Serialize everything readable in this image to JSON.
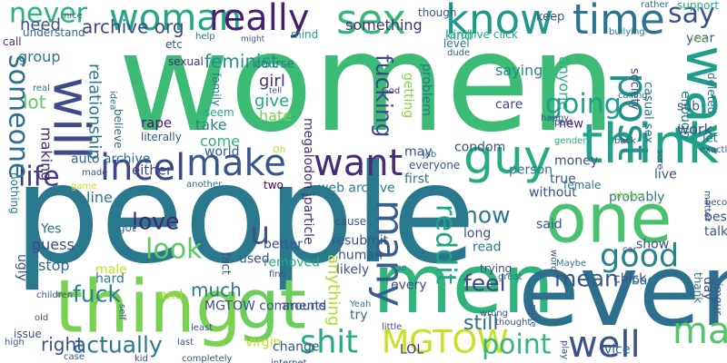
{
  "words": [
    {
      "text": "women",
      "color": "#3cbb75"
    },
    {
      "text": "people",
      "color": "#2a788e"
    },
    {
      "text": "men",
      "color": "#2fb47c"
    },
    {
      "text": "even",
      "color": "#2d708e"
    },
    {
      "text": "thing",
      "color": "#7ad151"
    },
    {
      "text": "gt",
      "color": "#6ccd5a"
    },
    {
      "text": "one",
      "color": "#4ac16d"
    },
    {
      "text": "think",
      "color": "#20a386"
    },
    {
      "text": "will",
      "color": "#3e4a89"
    },
    {
      "text": "woman",
      "color": "#22a785"
    },
    {
      "text": "sex",
      "color": "#35b779"
    },
    {
      "text": "know",
      "color": "#1f9a8a"
    },
    {
      "text": "time",
      "color": "#2c738e"
    },
    {
      "text": "really",
      "color": "#481f70"
    },
    {
      "text": "say",
      "color": "#3b528b"
    },
    {
      "text": "never",
      "color": "#2db27d"
    },
    {
      "text": "way",
      "color": "#1f9e89"
    },
    {
      "text": "make",
      "color": "#39568c"
    },
    {
      "text": "want",
      "color": "#472c7a"
    },
    {
      "text": "incel",
      "color": "#3f4788"
    },
    {
      "text": "guy",
      "color": "#25ac82"
    },
    {
      "text": "post",
      "color": "#21918c"
    },
    {
      "text": "good",
      "color": "#25848e"
    },
    {
      "text": "man",
      "color": "#52c569"
    },
    {
      "text": "well",
      "color": "#3b528b"
    },
    {
      "text": "shit",
      "color": "#25ab82"
    },
    {
      "text": "MGTOW",
      "color": "#c8e020"
    },
    {
      "text": "actually",
      "color": "#2a788e"
    },
    {
      "text": "point",
      "color": "#35b779"
    },
    {
      "text": "many",
      "color": "#355f8d"
    },
    {
      "text": "reddit",
      "color": "#20a486"
    },
    {
      "text": "going",
      "color": "#1f9e89"
    },
    {
      "text": "life",
      "color": "#443a83"
    },
    {
      "text": "someone",
      "color": "#2c728e"
    },
    {
      "text": "u",
      "color": "#3b528b"
    },
    {
      "text": "look",
      "color": "#5ec962"
    },
    {
      "text": "now",
      "color": "#2a788e"
    },
    {
      "text": "feel",
      "color": "#404688"
    },
    {
      "text": "mean",
      "color": "#39568c"
    },
    {
      "text": "fuck",
      "color": "#27808e"
    },
    {
      "text": "love",
      "color": "#482374"
    },
    {
      "text": "much",
      "color": "#29798e"
    },
    {
      "text": "still",
      "color": "#2e6e8e"
    },
    {
      "text": "gender",
      "color": "#25ab82"
    },
    {
      "text": "fucking",
      "color": "#3e4989"
    },
    {
      "text": "anything",
      "color": "#addc30"
    },
    {
      "text": "right",
      "color": "#3b528b"
    },
    {
      "text": "first",
      "color": "#2c728e"
    },
    {
      "text": "lot",
      "color": "#5ec962"
    },
    {
      "text": "feminist",
      "color": "#21918c"
    },
    {
      "text": "archive org",
      "color": "#404688"
    },
    {
      "text": "something",
      "color": "#46327e"
    },
    {
      "text": "need",
      "color": "#3b528b"
    },
    {
      "text": "understand",
      "color": "#31688e"
    },
    {
      "text": "group",
      "color": "#2a788e"
    },
    {
      "text": "relationship",
      "color": "#2a788e"
    },
    {
      "text": "making",
      "color": "#472d7b"
    },
    {
      "text": "either",
      "color": "#3e4989"
    },
    {
      "text": "rape",
      "color": "#481b6d"
    },
    {
      "text": "girl",
      "color": "#46327e"
    },
    {
      "text": "give",
      "color": "#22a884"
    },
    {
      "text": "hate",
      "color": "#7ad151"
    },
    {
      "text": "take",
      "color": "#25848e"
    },
    {
      "text": "come",
      "color": "#2db27d"
    },
    {
      "text": "world",
      "color": "#355f8d"
    },
    {
      "text": "auto archive",
      "color": "#31688e"
    },
    {
      "text": "web archive",
      "color": "#287c8e"
    },
    {
      "text": "megalodon jparticle",
      "color": "#46337f"
    },
    {
      "text": "mind",
      "color": "#20a386"
    },
    {
      "text": "keep",
      "color": "#38588c"
    },
    {
      "text": "though",
      "color": "#3b528b"
    },
    {
      "text": "kind",
      "color": "#20a486"
    },
    {
      "text": "level",
      "color": "#2a788e"
    },
    {
      "text": "dude",
      "color": "#355f8d"
    },
    {
      "text": "archive click",
      "color": "#22a884"
    },
    {
      "text": "getting",
      "color": "#86d549"
    },
    {
      "text": "problem",
      "color": "#2a778e"
    },
    {
      "text": "saying",
      "color": "#24878e"
    },
    {
      "text": "anyone",
      "color": "#2db27d"
    },
    {
      "text": "care",
      "color": "#3f4788"
    },
    {
      "text": "new",
      "color": "#482173"
    },
    {
      "text": "society",
      "color": "#3f4788"
    },
    {
      "text": "casual sex",
      "color": "#2c728e"
    },
    {
      "text": "enough",
      "color": "#29798e"
    },
    {
      "text": "sub",
      "color": "#355f8d"
    },
    {
      "text": "work",
      "color": "#3b528b"
    },
    {
      "text": "year",
      "color": "#38588c"
    },
    {
      "text": "let",
      "color": "#2a788e"
    },
    {
      "text": "deleted",
      "color": "#2a788e"
    },
    {
      "text": "bullying",
      "color": "#2a788e"
    },
    {
      "text": "rather",
      "color": "#306a8e"
    },
    {
      "text": "support",
      "color": "#22a884"
    },
    {
      "text": "less",
      "color": "#8fd744"
    },
    {
      "text": "God",
      "color": "#46337f"
    },
    {
      "text": "nice",
      "color": "#2b748e"
    },
    {
      "text": "call",
      "color": "#472f7d"
    },
    {
      "text": "real",
      "color": "#2b748e"
    },
    {
      "text": "idea",
      "color": "#2a778e"
    },
    {
      "text": "believe",
      "color": "#306a8e"
    },
    {
      "text": "sexual",
      "color": "#46327e"
    },
    {
      "text": "etc",
      "color": "#3b528b"
    },
    {
      "text": "help",
      "color": "#2d708e"
    },
    {
      "text": "might",
      "color": "#3b528b"
    },
    {
      "text": "course",
      "color": "#2a788e"
    },
    {
      "text": "tell",
      "color": "#3e4989"
    },
    {
      "text": "family",
      "color": "#287c8e"
    },
    {
      "text": "literally",
      "color": "#38588c"
    },
    {
      "text": "seem",
      "color": "#22a884"
    },
    {
      "text": "Oh",
      "color": "#b5de2b"
    },
    {
      "text": "everyone",
      "color": "#39568c"
    },
    {
      "text": "two",
      "color": "#440154"
    },
    {
      "text": "another",
      "color": "#2d708e"
    },
    {
      "text": "made",
      "color": "#3b528b"
    },
    {
      "text": "nothing",
      "color": "#287c8e"
    },
    {
      "text": "game",
      "color": "#c8e020"
    },
    {
      "text": "line",
      "color": "#29798e"
    },
    {
      "text": "Yes",
      "color": "#2c728e"
    },
    {
      "text": "got",
      "color": "#2c728e"
    },
    {
      "text": "guess",
      "color": "#3e4989"
    },
    {
      "text": "stop",
      "color": "#31688e"
    },
    {
      "text": "male",
      "color": "#c8e020"
    },
    {
      "text": "hard",
      "color": "#2a788e"
    },
    {
      "text": "ugly",
      "color": "#3b528b"
    },
    {
      "text": "end",
      "color": "#a8db34"
    },
    {
      "text": "MGTOW comments",
      "color": "#3b528b"
    },
    {
      "text": "virgin",
      "color": "#bddf26"
    },
    {
      "text": "change",
      "color": "#3b528b"
    },
    {
      "text": "around",
      "color": "#3b528b"
    },
    {
      "text": "try",
      "color": "#2c728e"
    },
    {
      "text": "LOL",
      "color": "#472f7d"
    },
    {
      "text": "vice",
      "color": "#2d708e"
    },
    {
      "text": "better",
      "color": "#3b528b"
    },
    {
      "text": "removed",
      "color": "#22a884"
    },
    {
      "text": "used",
      "color": "#3b528b"
    },
    {
      "text": "find",
      "color": "#3b528b"
    },
    {
      "text": "fact",
      "color": "#3b528b"
    },
    {
      "text": "cause",
      "color": "#3b528b"
    },
    {
      "text": "resubmit",
      "color": "#3b528b"
    },
    {
      "text": "likely",
      "color": "#3b528b"
    },
    {
      "text": "human",
      "color": "#3b528b"
    },
    {
      "text": "use",
      "color": "#2a788e"
    },
    {
      "text": "every",
      "color": "#3b528b"
    },
    {
      "text": "long",
      "color": "#3b528b"
    },
    {
      "text": "read",
      "color": "#2a788e"
    },
    {
      "text": "trying",
      "color": "#3b528b"
    },
    {
      "text": "great",
      "color": "#2a788e"
    },
    {
      "text": "said",
      "color": "#3b528b"
    },
    {
      "text": "word",
      "color": "#3b528b"
    },
    {
      "text": "Maybe",
      "color": "#2a788e"
    },
    {
      "text": "show",
      "color": "#3b528b"
    },
    {
      "text": "chick",
      "color": "#3b528b"
    },
    {
      "text": "thank",
      "color": "#2a788e"
    },
    {
      "text": "car",
      "color": "#3b528b"
    },
    {
      "text": "best",
      "color": "#3b528b"
    },
    {
      "text": "talking",
      "color": "#3b528b"
    },
    {
      "text": "bad",
      "color": "#2a788e"
    },
    {
      "text": "day",
      "color": "#3b528b"
    },
    {
      "text": "probably",
      "color": "#2a788e"
    },
    {
      "text": "always",
      "color": "#8fd744"
    },
    {
      "text": "live",
      "color": "#3b528b"
    },
    {
      "text": "true",
      "color": "#3b528b"
    },
    {
      "text": "person",
      "color": "#2a788e"
    },
    {
      "text": "money",
      "color": "#3b528b"
    },
    {
      "text": "female",
      "color": "#2a788e"
    },
    {
      "text": "without",
      "color": "#3b528b"
    },
    {
      "text": "Yeah",
      "color": "#2a788e"
    },
    {
      "text": "may",
      "color": "#3b528b"
    },
    {
      "text": "condom",
      "color": "#3b528b"
    },
    {
      "text": "job",
      "color": "#2a788e"
    },
    {
      "text": "back",
      "color": "#3b528b"
    },
    {
      "text": "sure",
      "color": "#3b528b"
    },
    {
      "text": "matter",
      "color": "#3b528b"
    },
    {
      "text": "become",
      "color": "#3b528b"
    },
    {
      "text": "exactly",
      "color": "#3b528b"
    },
    {
      "text": "part",
      "color": "#3b528b"
    },
    {
      "text": "happy",
      "color": "#3b528b"
    },
    {
      "text": "calling",
      "color": "#2a788e"
    },
    {
      "text": "quite",
      "color": "#3b528b"
    },
    {
      "text": "wrong",
      "color": "#3b528b"
    },
    {
      "text": "thought",
      "color": "#3b528b"
    },
    {
      "text": "little",
      "color": "#3b528b"
    },
    {
      "text": "old",
      "color": "#3b528b"
    },
    {
      "text": "issue",
      "color": "#3b528b"
    },
    {
      "text": "high",
      "color": "#3b528b"
    },
    {
      "text": "children",
      "color": "#3b528b"
    },
    {
      "text": "self",
      "color": "#3b528b"
    },
    {
      "text": "last",
      "color": "#3b528b"
    },
    {
      "text": "case",
      "color": "#3b528b"
    },
    {
      "text": "kid",
      "color": "#3b528b"
    },
    {
      "text": "completely",
      "color": "#3b528b"
    },
    {
      "text": "internet",
      "color": "#3b528b"
    },
    {
      "text": "least",
      "color": "#3b528b"
    },
    {
      "text": "imgur",
      "color": "#3b528b"
    },
    {
      "text": "play",
      "color": "#3b528b"
    },
    {
      "text": "everything",
      "color": "#3b528b"
    },
    {
      "text": "seen",
      "color": "#3b528b"
    }
  ]
}
